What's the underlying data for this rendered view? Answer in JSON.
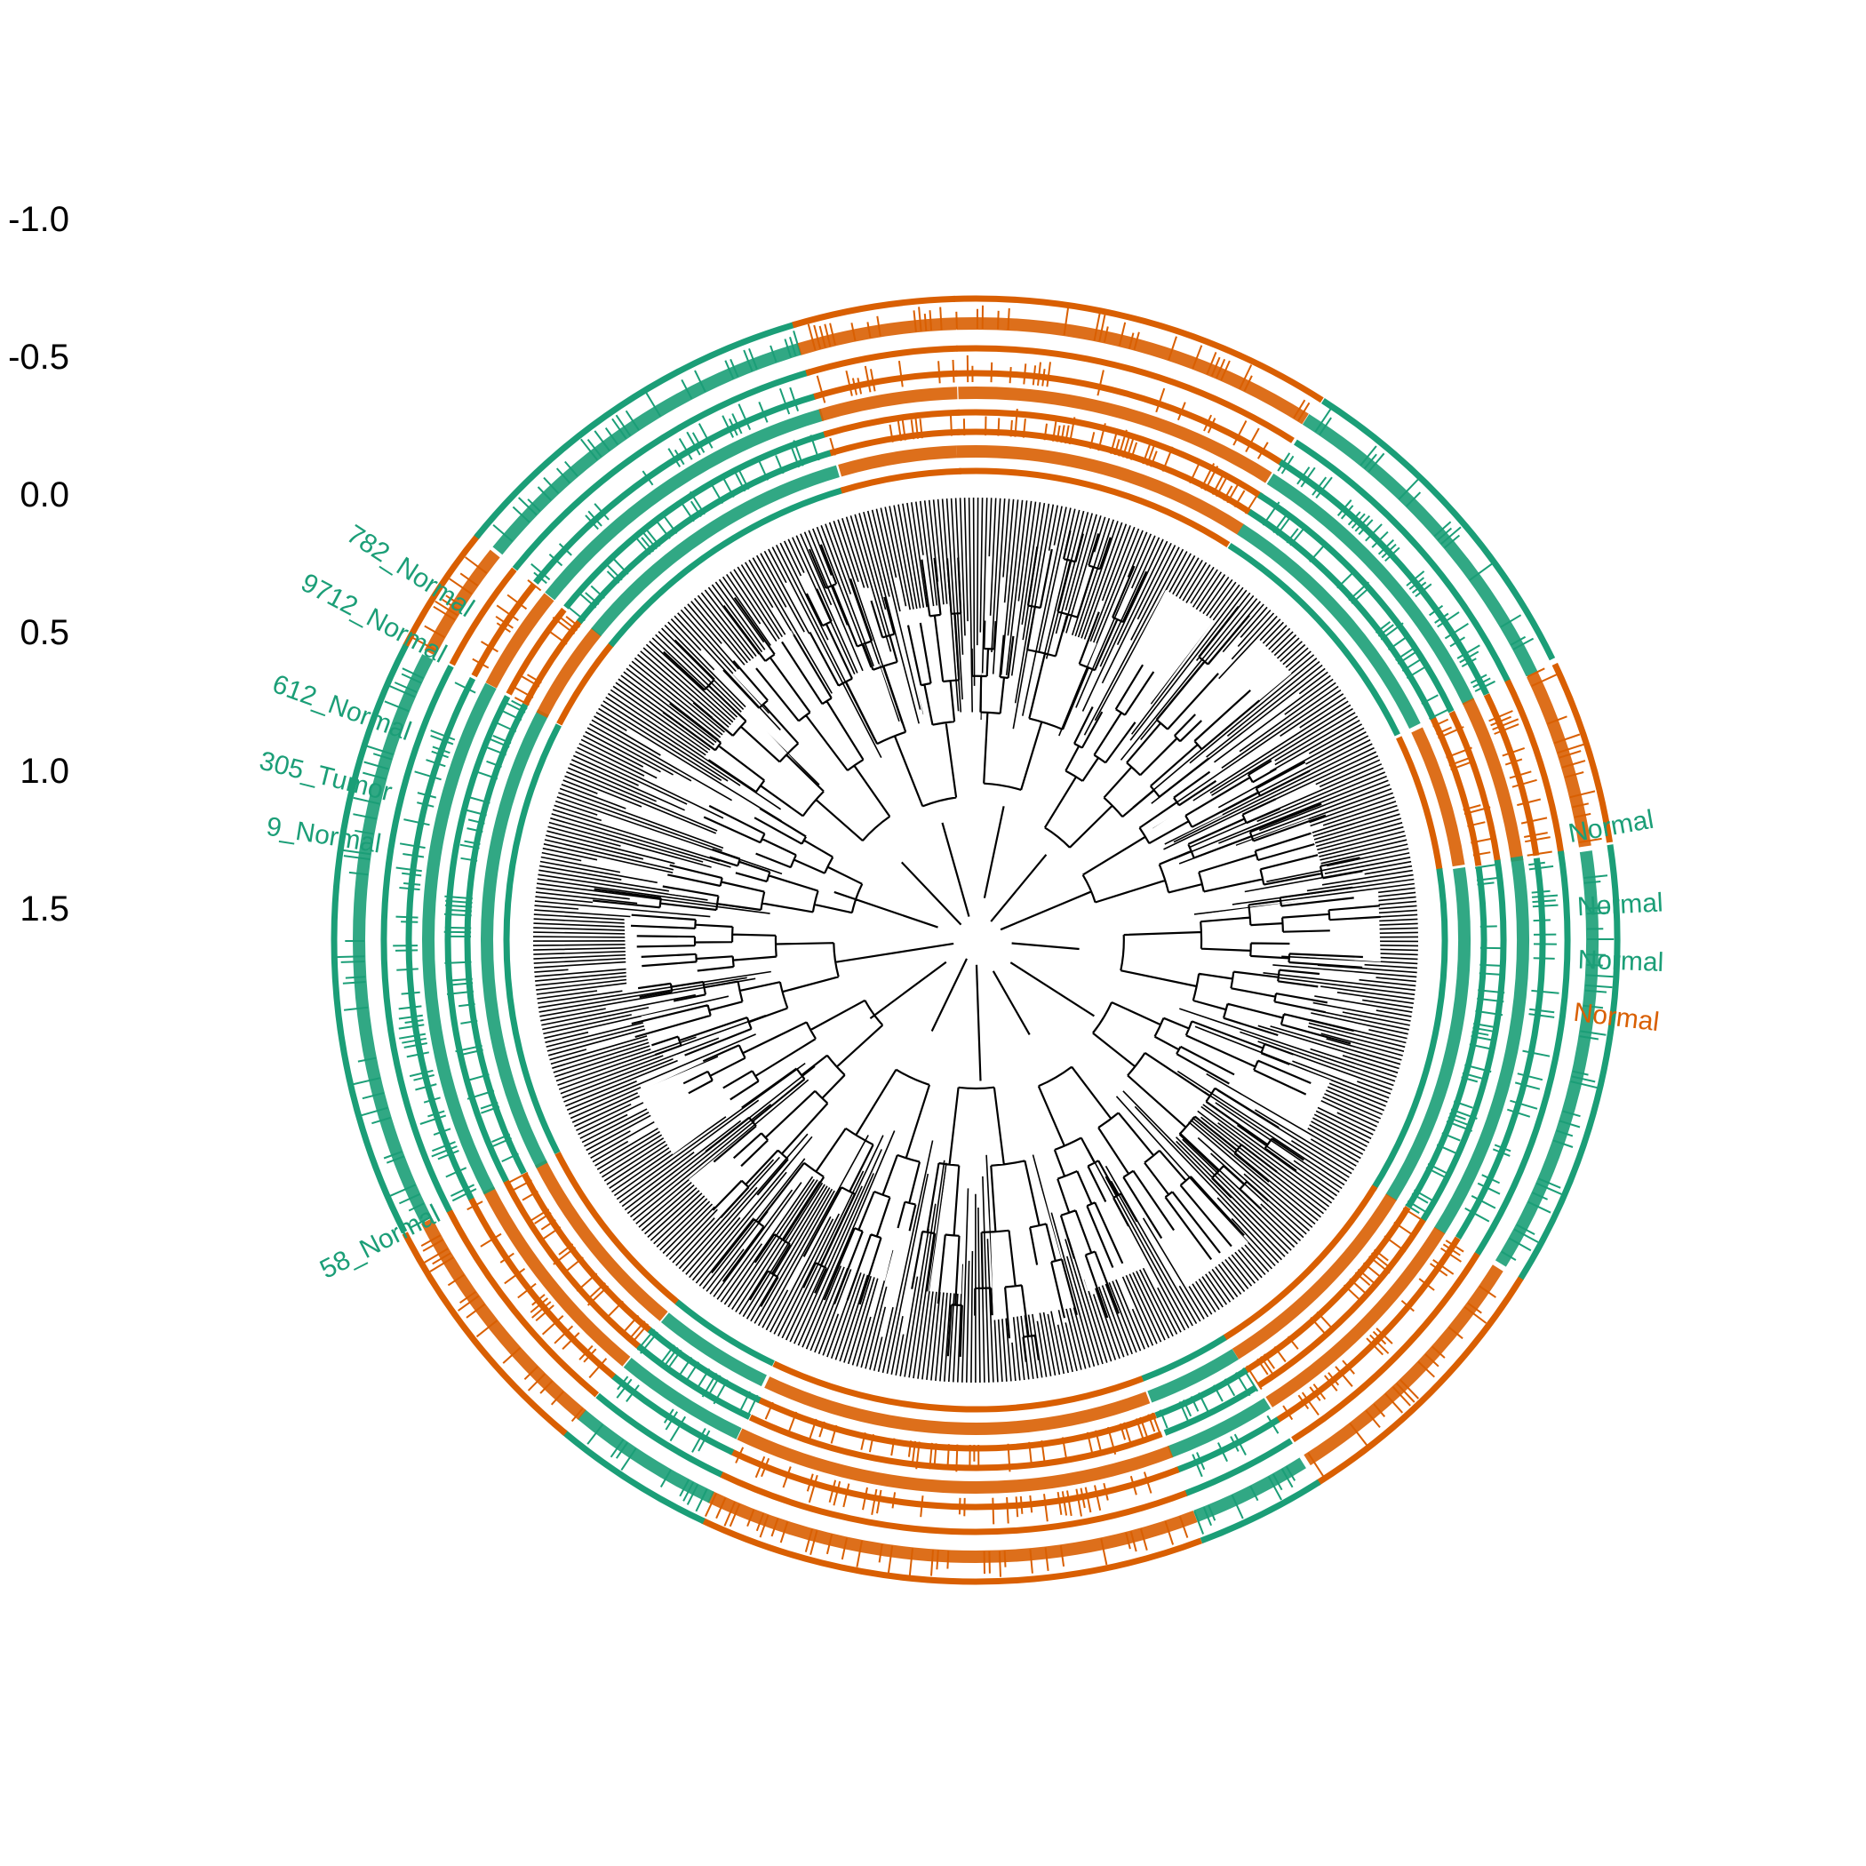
{
  "colors": {
    "normal": "#1b9e77",
    "tumor": "#d95f02",
    "branch": "#000000",
    "background": "#ffffff"
  },
  "chart_data": {
    "type": "circular-dendrogram",
    "title": "",
    "xlabel": "",
    "ylabel": "",
    "y_ticks": [
      "-1.0",
      "-0.5",
      "0.0",
      "0.5",
      "1.0",
      "1.5"
    ],
    "ylim": [
      -1.0,
      1.5
    ],
    "legend": "none",
    "grid": false,
    "groups": [
      "Normal",
      "Tumor"
    ],
    "clusters": [
      {
        "group": "Tumor",
        "leaves": 60
      },
      {
        "group": "Normal",
        "leaves": 55
      },
      {
        "group": "Tumor",
        "leaves": 30
      },
      {
        "group": "Normal",
        "leaves": 70
      },
      {
        "group": "Tumor",
        "leaves": 45
      },
      {
        "group": "Normal",
        "leaves": 20
      },
      {
        "group": "Tumor",
        "leaves": 80
      },
      {
        "group": "Normal",
        "leaves": 25
      },
      {
        "group": "Tumor",
        "leaves": 40
      },
      {
        "group": "Normal",
        "leaves": 95
      },
      {
        "group": "Tumor",
        "leaves": 20
      },
      {
        "group": "Normal",
        "leaves": 60
      },
      {
        "group": "Tumor",
        "leaves": 25
      }
    ],
    "visible_labels": [
      {
        "text": "58_Normal",
        "group": "Normal",
        "angle_deg": 207
      },
      {
        "text": "9_Normal",
        "group": "Normal",
        "angle_deg": 171
      },
      {
        "text": "305_Tumor",
        "group": "Normal",
        "angle_deg": 166
      },
      {
        "text": "612_Normal",
        "group": "Normal",
        "angle_deg": 160
      },
      {
        "text": "9712_Normal",
        "group": "Normal",
        "angle_deg": 152
      },
      {
        "text": "782_Normal",
        "group": "Normal",
        "angle_deg": 147
      },
      {
        "text": "Normal",
        "group": "Normal",
        "angle_deg": 10
      },
      {
        "text": "Normal",
        "group": "Normal",
        "angle_deg": 3
      },
      {
        "text": "Normal",
        "group": "Normal",
        "angle_deg": -2
      },
      {
        "text": "Normal",
        "group": "Tumor",
        "angle_deg": -7
      }
    ]
  }
}
